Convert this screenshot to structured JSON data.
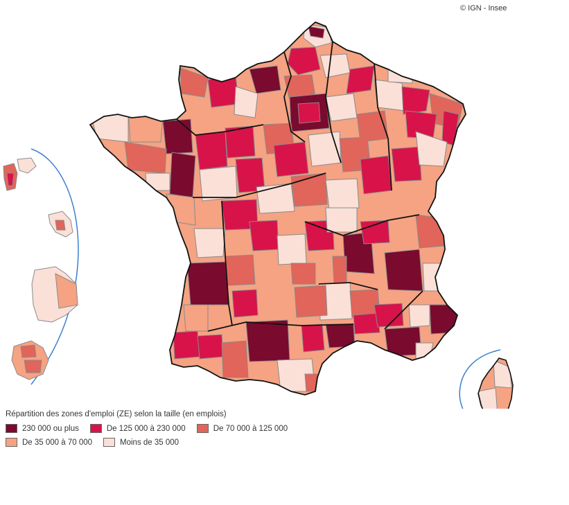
{
  "credit": "© IGN - Insee",
  "legend": {
    "title": "Répartition des zones d'emploi (ZE) selon la taille (en emplois)",
    "classes": [
      {
        "label": "230 000 ou plus",
        "color": "#7a0a2e"
      },
      {
        "label": "De 125 000 à 230 000",
        "color": "#d8134a"
      },
      {
        "label": "De 70 000 à 125 000",
        "color": "#e1655a"
      },
      {
        "label": "De 35 000 à 70 000",
        "color": "#f5a383"
      },
      {
        "label": "Moins de 35 000",
        "color": "#fbe0d8"
      }
    ]
  },
  "colors": {
    "region_border": "#111111",
    "zone_border": "#8a8a8a",
    "inset_arc": "#3b7fd0",
    "background": "#ffffff"
  }
}
